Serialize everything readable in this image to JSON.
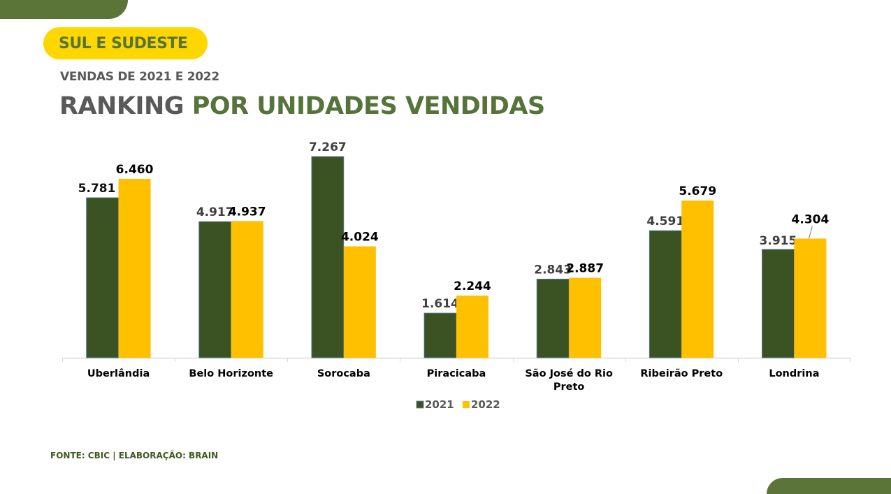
{
  "header": {
    "region_badge": "SUL E SUDESTE",
    "subtitle": "VENDAS DE 2021 E 2022",
    "title_part1": "RANKING",
    "title_part2": "POR UNIDADES VENDIDAS"
  },
  "footer": {
    "source": "FONTE: CBIC | ELABORAÇÃO: BRAIN"
  },
  "colors": {
    "brand_green": "#5b7538",
    "badge_yellow": "#ffd700",
    "series_2021": "#3b5323",
    "series_2022": "#ffc000"
  },
  "chart_data": {
    "type": "bar",
    "title": "RANKING POR UNIDADES VENDIDAS",
    "xlabel": "",
    "ylabel": "",
    "ylim": [
      0,
      7267
    ],
    "grid": false,
    "legend_position": "bottom",
    "categories": [
      [
        "Uberlândia"
      ],
      [
        "Belo Horizonte"
      ],
      [
        "Sorocaba"
      ],
      [
        "Piracicaba"
      ],
      [
        "São José do Rio",
        "Preto"
      ],
      [
        "Ribeirão Preto"
      ],
      [
        "Londrina"
      ]
    ],
    "series": [
      {
        "name": "2021",
        "color": "#3b5323",
        "values": [
          5781,
          4917,
          7267,
          1614,
          2843,
          4591,
          3915
        ],
        "labels": [
          "5.781",
          "4.917",
          "7.267",
          "1.614",
          "2.843",
          "4.591",
          "3.915"
        ],
        "label_colors": [
          "#111111",
          "#404040",
          "#404040",
          "#404040",
          "#404040",
          "#404040",
          "#404040"
        ]
      },
      {
        "name": "2022",
        "color": "#ffc000",
        "values": [
          6460,
          4937,
          4024,
          2244,
          2887,
          5679,
          4304
        ],
        "labels": [
          "6.460",
          "4.937",
          "4.024",
          "2.244",
          "2.887",
          "5.679",
          "4.304"
        ],
        "label_colors": [
          "#000000",
          "#000000",
          "#000000",
          "#000000",
          "#000000",
          "#000000",
          "#000000"
        ]
      }
    ]
  }
}
